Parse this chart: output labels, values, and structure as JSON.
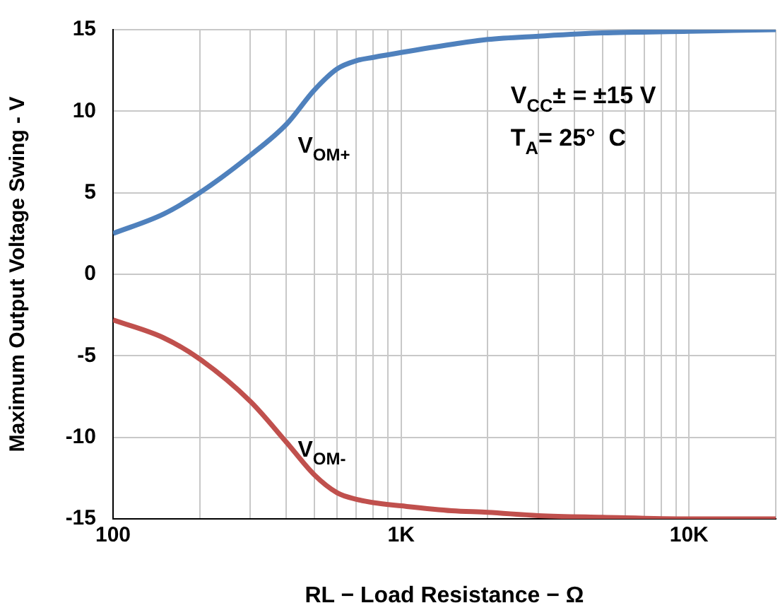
{
  "chart_data": {
    "type": "line",
    "xlabel": "RL − Load Resistance − Ω",
    "ylabel": "Maximum Output Voltage Swing - V",
    "log": "x",
    "grid": true,
    "legend": false,
    "marker": "none",
    "line_style": "solid",
    "xlim": [
      100,
      20000
    ],
    "xticks": [
      {
        "value": 100,
        "label": "100"
      },
      {
        "value": 200,
        "label": null
      },
      {
        "value": 300,
        "label": null
      },
      {
        "value": 400,
        "label": null
      },
      {
        "value": 500,
        "label": null
      },
      {
        "value": 600,
        "label": null
      },
      {
        "value": 700,
        "label": null
      },
      {
        "value": 800,
        "label": null
      },
      {
        "value": 900,
        "label": null
      },
      {
        "value": 1000,
        "label": "1K"
      },
      {
        "value": 2000,
        "label": null
      },
      {
        "value": 3000,
        "label": null
      },
      {
        "value": 4000,
        "label": null
      },
      {
        "value": 5000,
        "label": null
      },
      {
        "value": 6000,
        "label": null
      },
      {
        "value": 7000,
        "label": null
      },
      {
        "value": 8000,
        "label": null
      },
      {
        "value": 9000,
        "label": null
      },
      {
        "value": 10000,
        "label": "10K"
      },
      {
        "value": 20000,
        "label": null
      }
    ],
    "ylim": [
      -15,
      15
    ],
    "yticks": [
      -15,
      -10,
      -5,
      0,
      5,
      10,
      15
    ],
    "series": [
      {
        "color": "#4f81bd",
        "x": [
          100,
          150,
          200,
          300,
          400,
          500,
          600,
          700,
          800,
          1000,
          1500,
          2000,
          3000,
          5000,
          10000,
          20000
        ],
        "values": [
          2.5,
          3.7,
          5,
          7.3,
          9.2,
          11.3,
          12.6,
          13.1,
          13.3,
          13.6,
          14.1,
          14.4,
          14.6,
          14.8,
          14.9,
          15
        ]
      },
      {
        "color": "#c0504d",
        "x": [
          100,
          150,
          200,
          300,
          400,
          500,
          600,
          700,
          800,
          1000,
          1500,
          2000,
          3000,
          5000,
          10000,
          20000
        ],
        "values": [
          -2.8,
          -3.9,
          -5.2,
          -7.8,
          -10.3,
          -12.3,
          -13.4,
          -13.8,
          -14,
          -14.2,
          -14.5,
          -14.6,
          -14.8,
          -14.9,
          -15,
          -15
        ]
      }
    ],
    "annotations": [
      {
        "text": "V$_{OM+}$",
        "x": 400,
        "y": 9.2
      },
      {
        "text": "V$_{OM-}$",
        "x": 400,
        "y": -10.3
      },
      "V$_{CC}$± = ±15 V",
      "T$_{A}$= 25°  C"
    ]
  }
}
